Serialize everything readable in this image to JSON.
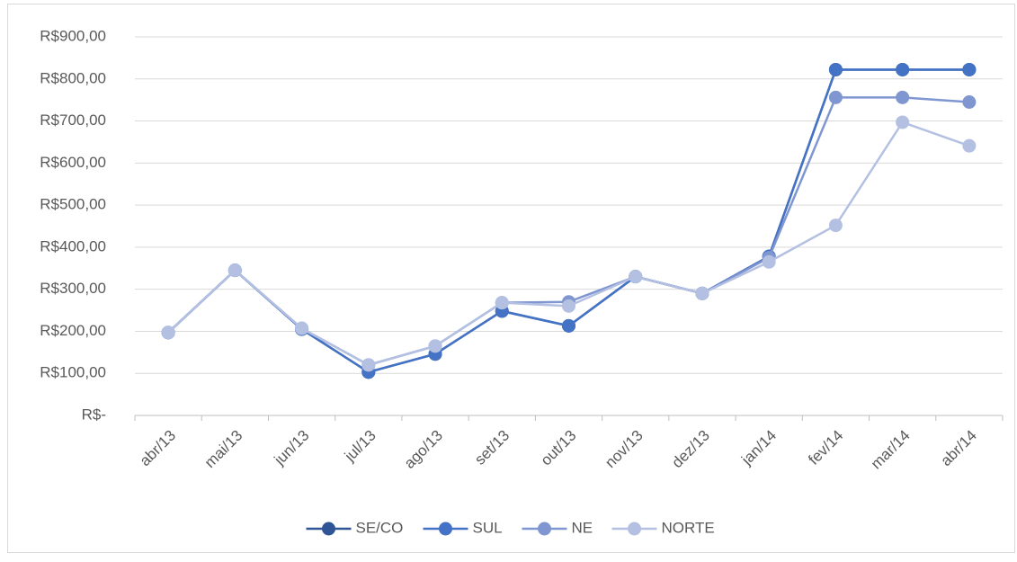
{
  "chart_data": {
    "type": "line",
    "categories": [
      "abr/13",
      "mai/13",
      "jun/13",
      "jul/13",
      "ago/13",
      "set/13",
      "out/13",
      "nov/13",
      "dez/13",
      "jan/14",
      "fev/14",
      "mar/14",
      "abr/14"
    ],
    "series": [
      {
        "name": "SE/CO",
        "color": "#2f5597",
        "values": [
          197,
          345,
          205,
          103,
          146,
          248,
          213,
          330,
          290,
          378,
          822,
          822,
          822
        ]
      },
      {
        "name": "SUL",
        "color": "#4472c4",
        "values": [
          197,
          345,
          205,
          103,
          146,
          248,
          213,
          330,
          290,
          378,
          822,
          822,
          822
        ]
      },
      {
        "name": "NE",
        "color": "#7f96d0",
        "values": [
          197,
          345,
          207,
          120,
          165,
          268,
          270,
          330,
          290,
          375,
          756,
          756,
          745
        ]
      },
      {
        "name": "NORTE",
        "color": "#b4c0e2",
        "values": [
          197,
          345,
          207,
          120,
          165,
          268,
          260,
          330,
          290,
          365,
          452,
          697,
          641
        ]
      }
    ],
    "ylim": [
      0,
      900
    ],
    "yticks": [
      {
        "value": 0,
        "label": "R$-"
      },
      {
        "value": 100,
        "label": "R$100,00"
      },
      {
        "value": 200,
        "label": "R$200,00"
      },
      {
        "value": 300,
        "label": "R$300,00"
      },
      {
        "value": 400,
        "label": "R$400,00"
      },
      {
        "value": 500,
        "label": "R$500,00"
      },
      {
        "value": 600,
        "label": "R$600,00"
      },
      {
        "value": 700,
        "label": "R$700,00"
      },
      {
        "value": 800,
        "label": "R$800,00"
      },
      {
        "value": 900,
        "label": "R$900,00"
      }
    ],
    "grid": true,
    "legend": "bottom"
  }
}
